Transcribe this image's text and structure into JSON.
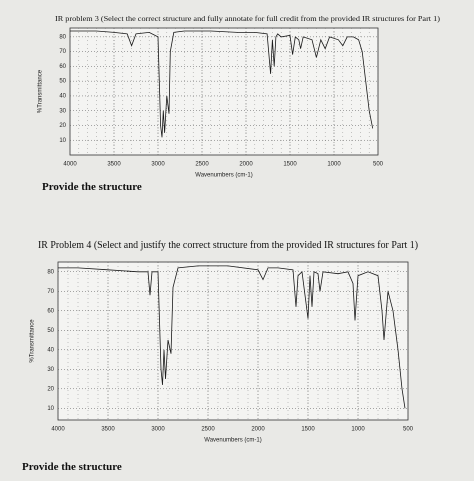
{
  "chart_data": [
    {
      "type": "line",
      "title": "IR problem 3 (Select the correct structure and fully annotate for full credit from the provided IR structures for Part 1)",
      "x_label": "Wavenumbers (cm-1)",
      "y_label": "%Transmittance",
      "xlim": [
        4000,
        500
      ],
      "ylim": [
        0,
        86
      ],
      "xticks": [
        4000,
        3500,
        3000,
        2500,
        2000,
        1500,
        1000,
        500
      ],
      "yticks": [
        10,
        20,
        30,
        40,
        50,
        60,
        70,
        80
      ],
      "grid": true,
      "color": "#1a1a1a",
      "x": [
        4000,
        3700,
        3500,
        3350,
        3300,
        3250,
        3100,
        3000,
        2970,
        2955,
        2940,
        2925,
        2900,
        2875,
        2860,
        2820,
        2700,
        2400,
        2100,
        1900,
        1760,
        1720,
        1700,
        1680,
        1660,
        1640,
        1600,
        1500,
        1470,
        1440,
        1400,
        1380,
        1350,
        1250,
        1200,
        1150,
        1100,
        1050,
        950,
        900,
        850,
        780,
        720,
        680,
        640,
        600,
        560
      ],
      "values": [
        84,
        84,
        83,
        82,
        74,
        82,
        83,
        80,
        20,
        12,
        30,
        15,
        40,
        28,
        70,
        83,
        84,
        84,
        83,
        83,
        82,
        55,
        78,
        60,
        80,
        82,
        80,
        81,
        68,
        80,
        78,
        72,
        80,
        78,
        66,
        78,
        72,
        80,
        78,
        74,
        80,
        80,
        78,
        70,
        50,
        30,
        18
      ]
    },
    {
      "type": "line",
      "title": "IR Problem 4 (Select and justify the correct structure from the provided IR structures for Part 1)",
      "x_label": "Wavenumbers (cm-1)",
      "y_label": "%Transmittance",
      "xlim": [
        4000,
        500
      ],
      "ylim": [
        4,
        85
      ],
      "xticks": [
        4000,
        3500,
        3000,
        2500,
        2000,
        1500,
        1000,
        500
      ],
      "yticks": [
        10,
        20,
        30,
        40,
        50,
        60,
        70,
        80
      ],
      "grid": true,
      "color": "#1a1a1a",
      "x": [
        4000,
        3800,
        3500,
        3200,
        3100,
        3080,
        3060,
        3000,
        2970,
        2955,
        2940,
        2925,
        2900,
        2870,
        2850,
        2800,
        2600,
        2300,
        2000,
        1950,
        1900,
        1800,
        1650,
        1620,
        1600,
        1560,
        1500,
        1480,
        1460,
        1440,
        1400,
        1380,
        1350,
        1200,
        1100,
        1050,
        1030,
        1000,
        900,
        800,
        760,
        740,
        700,
        650,
        600,
        560,
        530
      ],
      "values": [
        82,
        82,
        81,
        80,
        80,
        68,
        80,
        80,
        30,
        22,
        40,
        25,
        45,
        38,
        72,
        82,
        83,
        83,
        81,
        76,
        82,
        82,
        81,
        62,
        78,
        80,
        56,
        78,
        62,
        80,
        79,
        70,
        80,
        79,
        80,
        74,
        55,
        78,
        80,
        78,
        60,
        45,
        70,
        60,
        40,
        20,
        10
      ]
    }
  ],
  "captions": [
    "Provide the structure",
    "Provide the structure"
  ]
}
